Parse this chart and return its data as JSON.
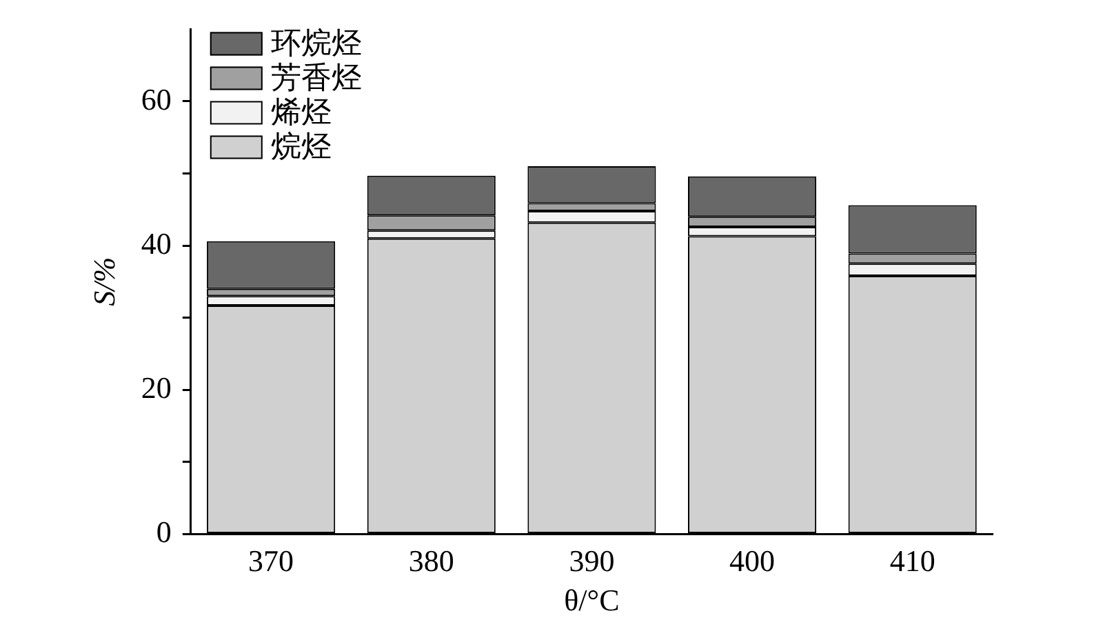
{
  "chart_data": {
    "type": "bar",
    "stacked": true,
    "xlabel": "θ/°C",
    "ylabel": "S/%",
    "categories": [
      "370",
      "380",
      "390",
      "400",
      "410"
    ],
    "series": [
      {
        "name": "烷烃",
        "color": "#d0d0d0",
        "values": [
          31.7,
          41.0,
          43.2,
          41.3,
          35.8
        ]
      },
      {
        "name": "烯烃",
        "color": "#f2f2f2",
        "values": [
          1.3,
          1.1,
          1.6,
          1.3,
          1.7
        ]
      },
      {
        "name": "芳香烃",
        "color": "#a0a0a0",
        "values": [
          1.0,
          2.1,
          1.1,
          1.4,
          1.4
        ]
      },
      {
        "name": "环烷烃",
        "color": "#686868",
        "values": [
          6.6,
          5.5,
          5.1,
          5.6,
          6.7
        ]
      }
    ],
    "ylim": [
      0,
      70
    ],
    "yticks": [
      0,
      {
        "value": 10,
        "label": null
      },
      20,
      {
        "value": 30,
        "label": null
      },
      40,
      {
        "value": 50,
        "label": null
      },
      60
    ],
    "grid": false,
    "legend": "top left"
  }
}
